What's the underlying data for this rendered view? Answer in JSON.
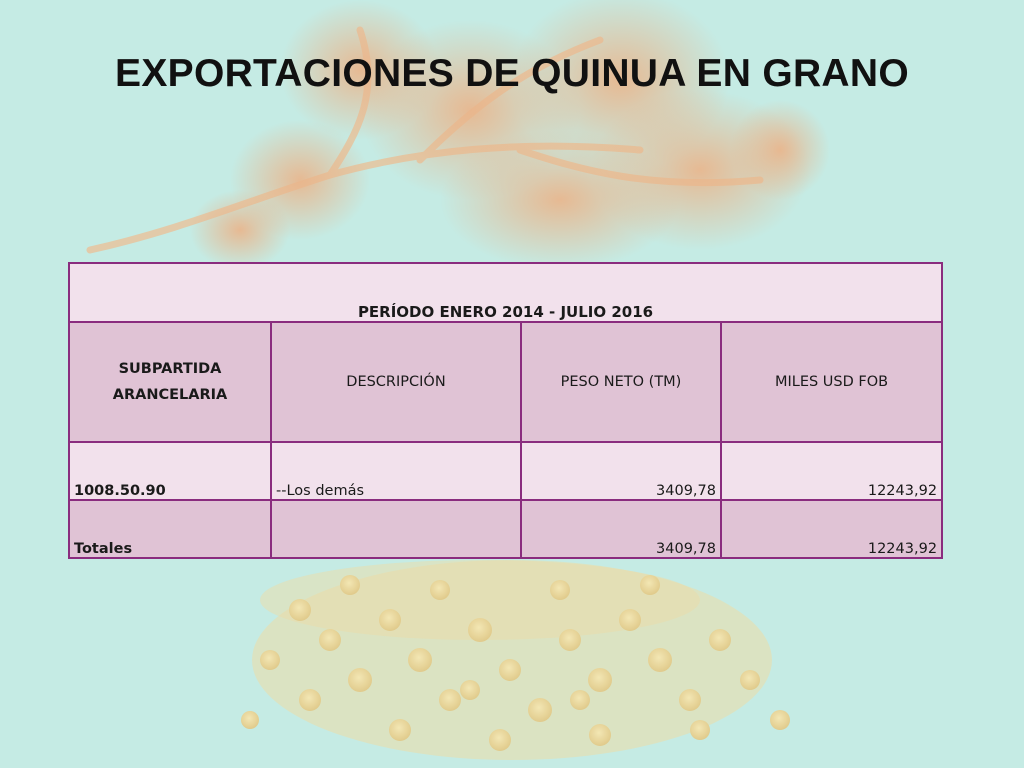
{
  "slide": {
    "title": "EXPORTACIONES DE QUINUA EN GRANO"
  },
  "table": {
    "period": "PERÍODO ENERO 2014 - JULIO 2016",
    "headers": {
      "subpartida_line1": "SUBPARTIDA",
      "subpartida_line2": "ARANCELARIA",
      "descripcion": "DESCRIPCIÓN",
      "peso": "PESO NETO (TM)",
      "miles": "MILES USD FOB"
    },
    "rows": [
      {
        "subpartida": "1008.50.90",
        "descripcion": "--Los demás",
        "peso": "3409,78",
        "miles": "12243,92"
      }
    ],
    "totals": {
      "label": "Totales",
      "descripcion": "",
      "peso": "3409,78",
      "miles": "12243,92"
    }
  },
  "colors": {
    "background": "#c5ebe4",
    "table_border": "#8a2c7e",
    "row_light": "#f2e1ec",
    "row_dark": "#e0c3d5"
  }
}
